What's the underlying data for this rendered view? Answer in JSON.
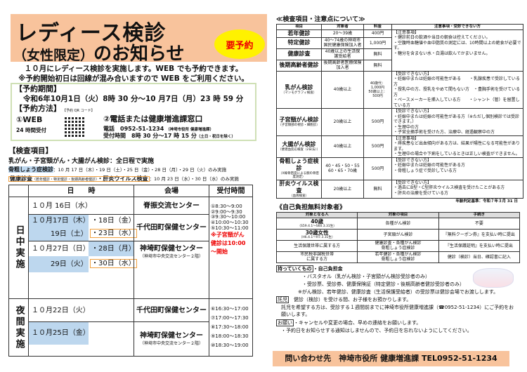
{
  "header": {
    "title_line1": "レディース検診",
    "title_paren": "（女性限定）",
    "title_line2": "のお知らせ",
    "badge": "要予約"
  },
  "intro": [
    "１０月にレディース検診を実施します。WEB でも予約できます。",
    "※予約開始初日は回線が混み合いますので WEB をご利用ください。"
  ],
  "reservation": {
    "period_label": "【予約期間】",
    "period": "令和6年10月1日（火）8時 30 分～10 月7日（月）23 時 59 分",
    "method_label": "【予約方法】",
    "web_label": "①WEB",
    "web_hours": "24 時間受付",
    "qr_label": "【予約 QR コード】",
    "phone_label": "②電話または健康増進課窓口",
    "phone": "電話　0952-51-1234",
    "phone_note": "（神埼市役所 健康増進課）",
    "hours": "受付時間　8時 30 分～17 時 15 分",
    "hours_note": "（土日・祝日を除く）"
  },
  "exam": {
    "label": "【検査項目】",
    "line1": "乳がん・子宮頸がん・大腸がん検診：全日程で実施",
    "line2_hl": "骨粗しょう症検診",
    "line2": "：10 月 17 日（木）・19 日（土）・25 日（金）・28 日（月）・29 日（火）のみ実施",
    "line3_hl": "健康診査",
    "line3_small": "（若年健診・特定健診・後期高齢者健診）",
    "line3_hl2": "・肝炎ウイルス検査",
    "line3": "：10 月 23 日（水）・30 日（水）のみ実施"
  },
  "schedule": {
    "headers": [
      "日　　時",
      "会場",
      "受付時間"
    ],
    "day_label": "日中実施",
    "night_label": "夜間実施",
    "d1": "１０月 16日（水）",
    "v1": "脊振交流センター",
    "d2a": "１０月17日（木）",
    "d2b": "・18日（金）",
    "d2c": "19日（土）",
    "d2d": "・23日（水）",
    "v2": "千代田町保健センター",
    "d3a": "１０月27日（日）",
    "d3b": "・28日（月）",
    "d3c": "29日（火）",
    "d3d": "・30日（水）",
    "v3": "神埼町保健センター",
    "v3_note": "（神埼市中央交流センター２階）",
    "day_times": [
      "①8:30～9:00",
      "②9:00～9:30",
      "③9:30～10:00",
      "④10:00～10:30",
      "⑤10:30～11:00"
    ],
    "day_note": "※子宮頸がん健診は10:00～開始",
    "n1": "１０月22日（火）",
    "nv1": "千代田町保健センター",
    "n2": "１０月25日（金）",
    "nv2": "神埼町保健センター",
    "nv2_note": "（神埼市中央交流センター２階）",
    "night_times": [
      "⑥16:30～17:00",
      "⑦17:00～17:30",
      "⑧17:30～18:00",
      "⑨18:00～18:30",
      "⑩18:30～19:00"
    ]
  },
  "items": {
    "title": "≪検査項目・注意点について≫",
    "headers": [
      "項目",
      "対象者",
      "料金",
      "注意事項・受診できない方"
    ],
    "rows": [
      {
        "name": "若年健診",
        "sub": "",
        "target": "20～39歳",
        "fee": "400円"
      },
      {
        "name": "特定健診",
        "sub": "",
        "target": "40～74歳の神埼市国民健康保険加入者",
        "fee": "1,000円"
      },
      {
        "name": "健康診査",
        "sub": "",
        "target": "40歳以上の生活保護受給者",
        "fee": "無料"
      },
      {
        "name": "後期高齢者健診",
        "sub": "",
        "target": "後期高齢者医療保険加入者",
        "fee": "無料"
      },
      {
        "name": "乳がん検診",
        "sub": "（マンモグラフィ検査）",
        "target": "40歳以上",
        "fee": "40歳代：1,000円\n50歳以上：500円",
        "notes": [
          "【受診できない方】",
          "・妊娠中または妊娠の可能性がある　　・乳腺疾患で受診している方",
          "・授乳中の方、授乳をやめて間もない方　・豊胸手術を受けている方",
          "・ペースメーカーを挿入している方　　・シャント（管）を留置している方"
        ]
      },
      {
        "name": "子宮頸がん検診",
        "sub": "（子宮頸部の視診・細胞診）",
        "target": "20歳以上",
        "fee": "500円",
        "notes": [
          "【受診できない方】",
          "・妊娠中または妊娠の可能性がある方（※ただし個別検診では受診できます。）",
          "・生理中の方",
          "・子宮全摘手術を受けた方、治療中、経過観察中の方"
        ]
      },
      {
        "name": "大腸がん検診",
        "sub": "（便潜血反応検査（2日法））",
        "target": "40歳以上",
        "fee": "500円",
        "notes": [
          "【注意事項】",
          "・痔疾患など出血傾向がある方は、結果が陽性になる可能性があります。",
          "・生理中の場合や下痢をしているときは正しい検査ができません。"
        ]
      },
      {
        "name": "骨粗しょう症検診",
        "sub": "（X線骨密度による腕の骨密度測定）",
        "target": "40・45・50・55\n60・65・70歳",
        "fee": "500円",
        "notes": [
          "【受診できない方】",
          "・妊娠中または妊娠の可能性がある方",
          "・骨粗しょう症で受診している方"
        ]
      },
      {
        "name": "肝炎ウイルス検査",
        "sub": "（血液検査）",
        "target": "20歳以上",
        "fee": "無料",
        "notes": [
          "【受診できない方】",
          "・過去にB型・C型肝炎ウイルス検査を受けたことがある方",
          "・肝炎の治療を受けている方"
        ]
      }
    ],
    "health_notes": [
      "【注意事項】",
      "・健診前日の飲酒や当日の朝食は控えてください。",
      "・空腹時血糖値や血中脂質の測定には、10時間以上の絶食が必要です。",
      "・糖分を含まない水・白湯は飲んでかまいません。"
    ],
    "age_basis": "年齢判定基準：令和７年３月 31 日"
  },
  "free": {
    "title": "《自己負担無料対象者》",
    "headers": [
      "対象となる人",
      "対象の項目",
      "手続き"
    ],
    "rows": [
      {
        "who": "40歳",
        "who_sub": "（S59.4.1～S60.3.31生）",
        "item": "各種がん検診",
        "proc": "不要"
      },
      {
        "who": "30歳女性",
        "who_sub": "（H6.4.1～H7.3.31生）",
        "item": "子宮頸がん検診",
        "proc": "『無料クーポン券』を支払い時に提出"
      },
      {
        "who": "生活保護世帯に属する方",
        "who_sub": "",
        "item": "健康診査・各種がん検診\n骨粗しょう症検診",
        "proc": "『生活保護証明』を支払い時に提出"
      },
      {
        "who": "市民税非課税世帯\nに属する方",
        "who_sub": "",
        "item": "若年健診・各種がん検診\n骨粗しょう症検診",
        "proc": "健診（検診）当日、確認書に記入"
      }
    ]
  },
  "bring": {
    "label": "持っていくもの",
    "first": "・自己負担金",
    "lines": [
      "・バスタオル（乳がん検診・子宮頸がん検診受診者のみ）",
      "・受診票、受診券、健康保険証（特定健診・後期高齢者健診受診者のみ）",
      "※がん検診、若年健診、健康診査（生活保護受給者）の受診票は健診会場でお渡しします。"
    ]
  },
  "childcare": {
    "label": "託児",
    "text": "健診（検診）を受ける間、お子様をお預かりします。",
    "detail": "託児を希望する方は、受診する１週間前までに神埼市役所健康増進課（☎0952-51-1234）にご予約をお願いします。"
  },
  "request": {
    "label": "お願い",
    "lines": [
      "・キャンセルや変更の場合、早めの連絡をお願いします。",
      "・予約日をお知らせする通知はしませんので、予約日を忘れないようにしてください。"
    ]
  },
  "footer": "問い合わせ先　神埼市役所 健康増進課 TEL0952-51-1234",
  "colors": {
    "header_bg": "#f8c39c",
    "badge_bg": "#fff200",
    "badge_text": "#e00000",
    "highlight_blue": "#bdd7ee",
    "highlight_orange": "#f0a040",
    "reservation_border": "#cfe0b5"
  }
}
